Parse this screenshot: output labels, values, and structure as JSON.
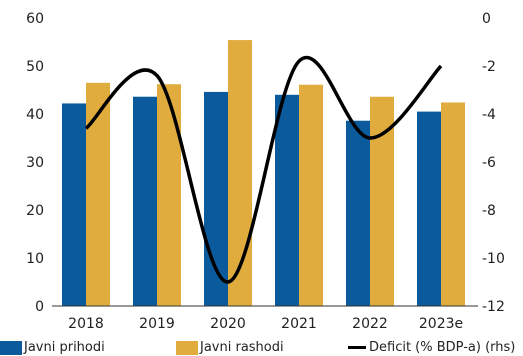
{
  "chart_data": {
    "type": "bar",
    "categories": [
      "2018",
      "2019",
      "2020",
      "2021",
      "2022",
      "2023e"
    ],
    "series": [
      {
        "name": "Javni prihodi",
        "axis": "left",
        "kind": "bar",
        "color": "#0a5a9c",
        "values": [
          42.2,
          43.6,
          44.6,
          44.0,
          38.6,
          40.5
        ]
      },
      {
        "name": "Javni rashodi",
        "axis": "left",
        "kind": "bar",
        "color": "#e0ac3e",
        "values": [
          46.5,
          46.2,
          55.4,
          46.1,
          43.6,
          42.4
        ]
      },
      {
        "name": "Deficit (% BDP-a) (rhs)",
        "axis": "right",
        "kind": "line",
        "color": "#000000",
        "values": [
          -4.6,
          -2.4,
          -11.0,
          -1.8,
          -5.0,
          -2.0
        ]
      }
    ],
    "ylim": [
      0,
      60
    ],
    "y_ticks": [
      "0",
      "10",
      "20",
      "30",
      "40",
      "50",
      "60"
    ],
    "y2lim": [
      -12,
      0
    ],
    "y2_ticks": [
      "-12",
      "-10",
      "-8",
      "-6",
      "-4",
      "-2",
      "0"
    ],
    "grid": false,
    "legend_position": "bottom"
  }
}
